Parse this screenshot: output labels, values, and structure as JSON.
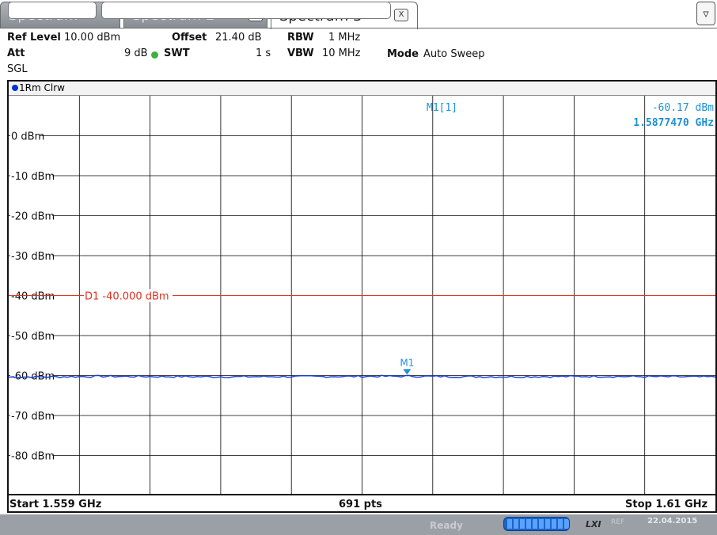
{
  "tabs": [
    {
      "label": "Spectrum"
    },
    {
      "label": "Spectrum 2",
      "close": "X"
    },
    {
      "label": "Spectrum 3",
      "close": "X"
    }
  ],
  "settings": {
    "ref_level_label": "Ref Level",
    "ref_level_value": "10.00 dBm",
    "offset_label": "Offset",
    "offset_value": "21.40 dB",
    "rbw_label": "RBW",
    "rbw_value": "1 MHz",
    "att_label": "Att",
    "att_value": "9 dB",
    "swt_label": "SWT",
    "swt_value": "1 s",
    "vbw_label": "VBW",
    "vbw_value": "10 MHz",
    "mode_label": "Mode",
    "mode_value": "Auto Sweep",
    "sgl": "SGL"
  },
  "trace": {
    "label": "1Rm Clrw",
    "color": "#1a3fd1"
  },
  "marker": {
    "name": "M1",
    "readout_label": "M1[1]",
    "level": "-60.17 dBm",
    "frequency": "1.5877470 GHz",
    "color": "#1e90d6"
  },
  "display_line": {
    "label": "D1 -40.000 dBm",
    "level_dbm": -40,
    "color": "#e03020"
  },
  "chart_data": {
    "type": "line",
    "y_ticks": [
      "0 dBm",
      "-10 dBm",
      "-20 dBm",
      "-30 dBm",
      "-40 dBm",
      "-50 dBm",
      "-60 dBm",
      "-70 dBm",
      "-80 dBm"
    ],
    "ylim": [
      -90,
      10
    ],
    "xlim": [
      1.559,
      1.61
    ],
    "series": [
      {
        "x": [
          1.559,
          1.566,
          1.5736,
          1.5806,
          1.5877,
          1.594,
          1.6015,
          1.61
        ],
        "values": [
          -60.4,
          -60.2,
          -60.3,
          -60.25,
          -60.17,
          -60.3,
          -60.2,
          -60.35
        ]
      }
    ]
  },
  "footer": {
    "start": "Start 1.559 GHz",
    "points": "691 pts",
    "stop": "Stop 1.61 GHz"
  },
  "statusbar": {
    "ready": "Ready",
    "progress_fraction": 1.0,
    "lxi": "LXI",
    "ref": "REF",
    "date": "22.04.2015"
  }
}
